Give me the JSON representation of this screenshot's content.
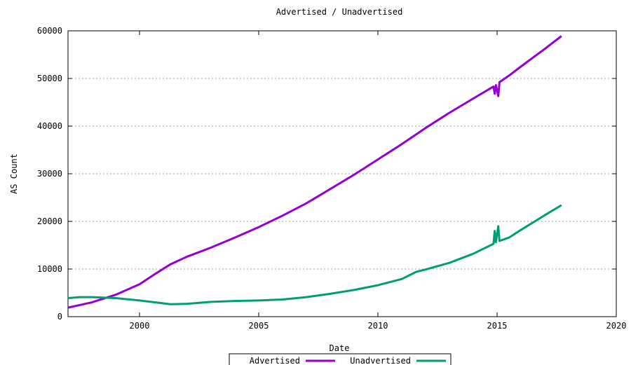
{
  "chart_data": {
    "type": "line",
    "title": "Advertised / Unadvertised",
    "xlabel": "Date",
    "ylabel": "AS Count",
    "xlim": [
      1997,
      2020
    ],
    "ylim": [
      0,
      60000
    ],
    "x_ticks": [
      2000,
      2005,
      2010,
      2015,
      2020
    ],
    "y_ticks": [
      0,
      10000,
      20000,
      30000,
      40000,
      50000,
      60000
    ],
    "grid": true,
    "legend_position": "bottom-center",
    "series": [
      {
        "name": "Advertised",
        "color": "#9400d3",
        "points": [
          [
            1997.0,
            1900
          ],
          [
            1998.0,
            3000
          ],
          [
            1999.0,
            4600
          ],
          [
            2000.0,
            6800
          ],
          [
            2000.6,
            8800
          ],
          [
            2001.3,
            11000
          ],
          [
            2002.0,
            12600
          ],
          [
            2003.0,
            14500
          ],
          [
            2004.0,
            16600
          ],
          [
            2005.0,
            18800
          ],
          [
            2006.0,
            21200
          ],
          [
            2007.0,
            23800
          ],
          [
            2008.0,
            26800
          ],
          [
            2009.0,
            29800
          ],
          [
            2010.0,
            33000
          ],
          [
            2011.0,
            36200
          ],
          [
            2012.0,
            39600
          ],
          [
            2013.0,
            42800
          ],
          [
            2014.0,
            45800
          ],
          [
            2014.85,
            48300
          ],
          [
            2014.9,
            46800
          ],
          [
            2014.95,
            48600
          ],
          [
            2015.05,
            46300
          ],
          [
            2015.1,
            49200
          ],
          [
            2015.5,
            50600
          ],
          [
            2016.0,
            52500
          ],
          [
            2017.0,
            56200
          ],
          [
            2017.7,
            58900
          ]
        ]
      },
      {
        "name": "Unadvertised",
        "color": "#009e73",
        "points": [
          [
            1997.0,
            3900
          ],
          [
            1997.5,
            4100
          ],
          [
            1998.0,
            4100
          ],
          [
            1999.0,
            3900
          ],
          [
            2000.0,
            3400
          ],
          [
            2001.0,
            2800
          ],
          [
            2001.3,
            2600
          ],
          [
            2002.0,
            2700
          ],
          [
            2003.0,
            3100
          ],
          [
            2004.0,
            3300
          ],
          [
            2005.0,
            3400
          ],
          [
            2006.0,
            3600
          ],
          [
            2007.0,
            4100
          ],
          [
            2008.0,
            4800
          ],
          [
            2009.0,
            5600
          ],
          [
            2010.0,
            6600
          ],
          [
            2011.0,
            7900
          ],
          [
            2011.6,
            9400
          ],
          [
            2012.0,
            9900
          ],
          [
            2013.0,
            11300
          ],
          [
            2014.0,
            13200
          ],
          [
            2014.85,
            15300
          ],
          [
            2014.9,
            18000
          ],
          [
            2014.95,
            15600
          ],
          [
            2015.05,
            19000
          ],
          [
            2015.1,
            15900
          ],
          [
            2015.5,
            16600
          ],
          [
            2016.0,
            18200
          ],
          [
            2017.0,
            21300
          ],
          [
            2017.7,
            23400
          ]
        ]
      }
    ]
  }
}
